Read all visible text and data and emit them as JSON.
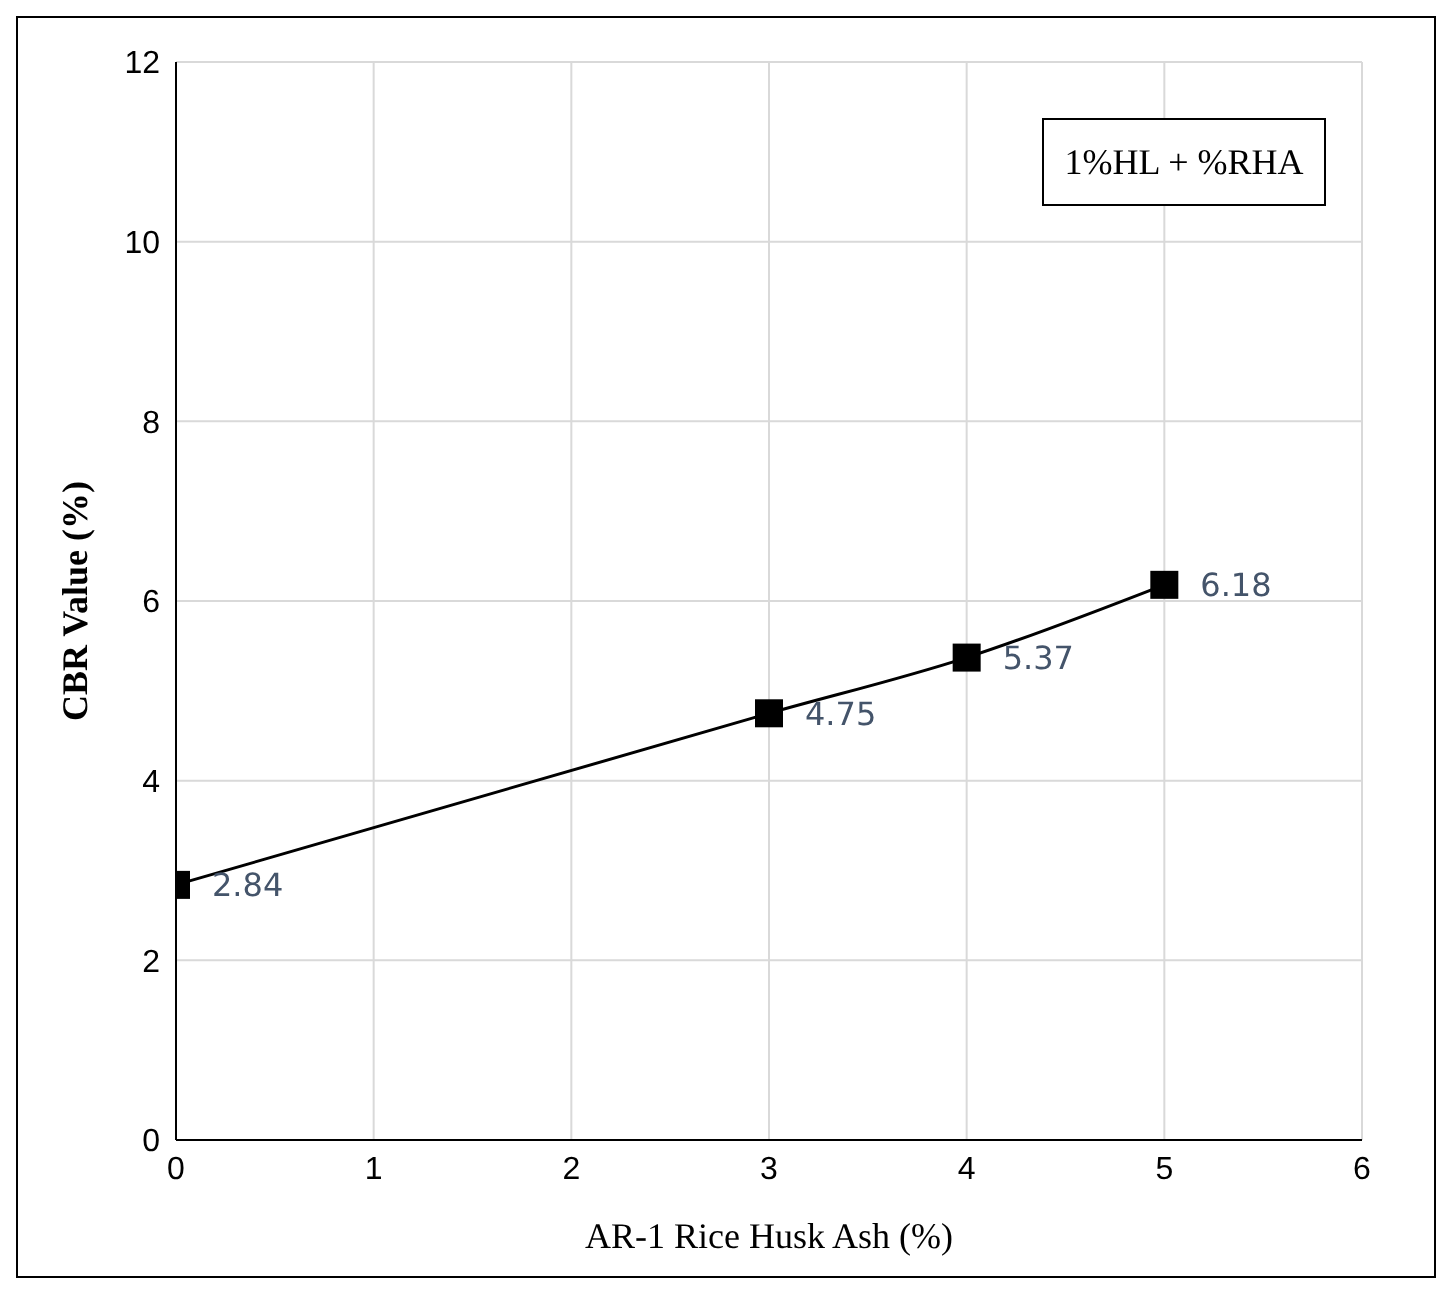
{
  "chart_data": {
    "type": "line",
    "xlabel": "AR-1   Rice Husk Ash (%)",
    "ylabel": "CBR Value (%)",
    "x": [
      0,
      3,
      4,
      5
    ],
    "series": [
      {
        "color": "#000000",
        "values": [
          2.84,
          4.75,
          5.37,
          6.18
        ]
      }
    ],
    "xlim": [
      0,
      6
    ],
    "xticks": [
      0,
      1,
      2,
      3,
      4,
      5,
      6
    ],
    "ylim": [
      0,
      12
    ],
    "yticks": [
      0,
      2,
      4,
      6,
      8,
      10,
      12
    ],
    "grid": true,
    "marker": "square",
    "line_style": "solid",
    "data_labels": true,
    "annotations": [
      "1%HL + %RHA"
    ]
  }
}
